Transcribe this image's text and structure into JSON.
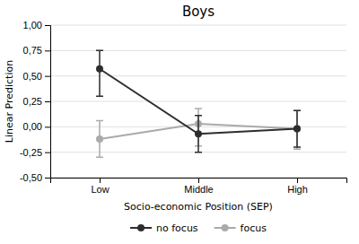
{
  "chart_data": {
    "type": "line",
    "title": "Boys",
    "xlabel": "Socio-economic Position (SEP)",
    "ylabel": "Linear Prediction",
    "categories": [
      "Low",
      "Middle",
      "High"
    ],
    "series": [
      {
        "name": "no focus",
        "color": "#2d2d2d",
        "marker": "circle",
        "values": [
          0.57,
          -0.07,
          -0.02
        ],
        "error_upper": [
          0.18,
          0.18,
          0.18
        ],
        "error_lower": [
          0.27,
          0.18,
          0.18
        ]
      },
      {
        "name": "focus",
        "color": "#aaaaaa",
        "marker": "circle",
        "values": [
          -0.12,
          0.03,
          -0.02
        ],
        "error_upper": [
          0.18,
          0.15,
          0.18
        ],
        "error_lower": [
          0.18,
          0.22,
          0.2
        ]
      }
    ],
    "ylim": [
      -0.5,
      1.0
    ],
    "yticks": [
      {
        "value": -0.5,
        "label": "-0,50"
      },
      {
        "value": -0.25,
        "label": "-0,25"
      },
      {
        "value": 0.0,
        "label": "0,00"
      },
      {
        "value": 0.25,
        "label": "0,25"
      },
      {
        "value": 0.5,
        "label": "0,50"
      },
      {
        "value": 0.75,
        "label": "0,75"
      },
      {
        "value": 1.0,
        "label": "1,00"
      }
    ],
    "grid": true,
    "legend": "bottom"
  }
}
